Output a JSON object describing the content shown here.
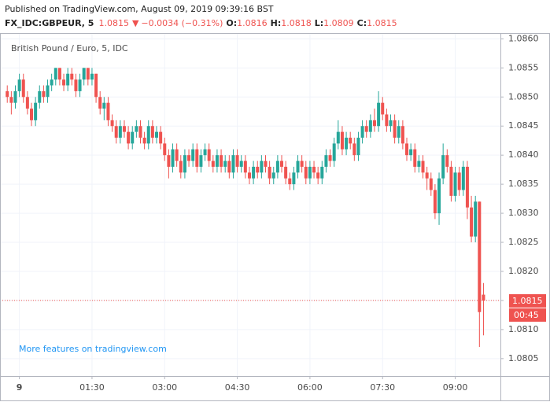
{
  "header": {
    "published": "Published on TradingView.com, August 09, 2019 09:39:16 BST",
    "symbol": "FX_IDC:GBPEUR, 5",
    "last": 1.0815,
    "arrow": "▼",
    "change": "−0.0034 (−0.31%)",
    "ohlc": [
      {
        "label": "O:",
        "value": 1.0816
      },
      {
        "label": "H:",
        "value": 1.0818
      },
      {
        "label": "L:",
        "value": 1.0809
      },
      {
        "label": "C:",
        "value": 1.0815
      }
    ]
  },
  "chart_data": {
    "type": "candlestick",
    "title": "British Pound / Euro, 5, IDC",
    "watermark": "More features on tradingview.com",
    "up_color": "#26a69a",
    "down_color": "#ef5350",
    "grid": true,
    "price_line": 1.0815,
    "countdown": "00:45",
    "xlim": [
      -24,
      596
    ],
    "xticks": [
      {
        "value": 0,
        "label": "9"
      },
      {
        "value": 90,
        "label": "01:30"
      },
      {
        "value": 180,
        "label": "03:00"
      },
      {
        "value": 270,
        "label": "04:30"
      },
      {
        "value": 360,
        "label": "06:00"
      },
      {
        "value": 450,
        "label": "07:30"
      },
      {
        "value": 540,
        "label": "09:00"
      }
    ],
    "ylim": [
      1.0802,
      1.0861
    ],
    "yticks": [
      1.0805,
      {
        "value": 1.081,
        "label": "1.0810"
      },
      1.0815,
      {
        "value": 1.082,
        "label": "1.0820"
      },
      1.0825,
      {
        "value": 1.083,
        "label": "1.0830"
      },
      1.0835,
      {
        "value": 1.084,
        "label": "1.0840"
      },
      1.0845,
      {
        "value": 1.085,
        "label": "1.0850"
      },
      1.0855,
      {
        "value": 1.086,
        "label": "1.0860"
      }
    ],
    "x": [
      -15,
      -10,
      -5,
      0,
      5,
      10,
      15,
      20,
      25,
      30,
      35,
      40,
      45,
      50,
      55,
      60,
      65,
      70,
      75,
      80,
      85,
      90,
      95,
      100,
      105,
      110,
      115,
      120,
      125,
      130,
      135,
      140,
      145,
      150,
      155,
      160,
      165,
      170,
      175,
      180,
      185,
      190,
      195,
      200,
      205,
      210,
      215,
      220,
      225,
      230,
      235,
      240,
      245,
      250,
      255,
      260,
      265,
      270,
      275,
      280,
      285,
      290,
      295,
      300,
      305,
      310,
      315,
      320,
      325,
      330,
      335,
      340,
      345,
      350,
      355,
      360,
      365,
      370,
      375,
      380,
      385,
      390,
      395,
      400,
      405,
      410,
      415,
      420,
      425,
      430,
      435,
      440,
      445,
      450,
      455,
      460,
      465,
      470,
      475,
      480,
      485,
      490,
      495,
      500,
      505,
      510,
      515,
      520,
      525,
      530,
      535,
      540,
      545,
      550,
      555,
      560,
      565,
      570,
      575
    ],
    "candles": [
      [
        1.0851,
        1.0852,
        1.0849,
        1.085
      ],
      [
        1.085,
        1.0851,
        1.0847,
        1.0849
      ],
      [
        1.0849,
        1.0852,
        1.0848,
        1.0851
      ],
      [
        1.0851,
        1.0854,
        1.085,
        1.0853
      ],
      [
        1.0853,
        1.0854,
        1.0849,
        1.085
      ],
      [
        1.085,
        1.0851,
        1.0847,
        1.0848
      ],
      [
        1.0848,
        1.0849,
        1.0845,
        1.0846
      ],
      [
        1.0846,
        1.085,
        1.0845,
        1.0849
      ],
      [
        1.0849,
        1.0852,
        1.0848,
        1.0851
      ],
      [
        1.0851,
        1.0852,
        1.0849,
        1.085
      ],
      [
        1.085,
        1.0853,
        1.0849,
        1.0852
      ],
      [
        1.0852,
        1.0854,
        1.0851,
        1.0853
      ],
      [
        1.0853,
        1.0855,
        1.0852,
        1.0855
      ],
      [
        1.0855,
        1.0855,
        1.0852,
        1.0853
      ],
      [
        1.0853,
        1.0854,
        1.0851,
        1.0852
      ],
      [
        1.0852,
        1.0855,
        1.0851,
        1.0854
      ],
      [
        1.0854,
        1.0855,
        1.0852,
        1.0853
      ],
      [
        1.0853,
        1.0854,
        1.085,
        1.0851
      ],
      [
        1.0851,
        1.0854,
        1.085,
        1.0853
      ],
      [
        1.0853,
        1.0855,
        1.0852,
        1.0855
      ],
      [
        1.0855,
        1.0855,
        1.0852,
        1.0853
      ],
      [
        1.0853,
        1.0855,
        1.0852,
        1.0854
      ],
      [
        1.0854,
        1.0854,
        1.0849,
        1.085
      ],
      [
        1.085,
        1.0851,
        1.0847,
        1.0848
      ],
      [
        1.0848,
        1.085,
        1.0846,
        1.0849
      ],
      [
        1.0849,
        1.085,
        1.0845,
        1.0846
      ],
      [
        1.0846,
        1.0847,
        1.0844,
        1.0845
      ],
      [
        1.0845,
        1.0846,
        1.0842,
        1.0843
      ],
      [
        1.0843,
        1.0846,
        1.0842,
        1.0845
      ],
      [
        1.0845,
        1.0846,
        1.0843,
        1.0844
      ],
      [
        1.0844,
        1.0845,
        1.0841,
        1.0842
      ],
      [
        1.0842,
        1.0845,
        1.0841,
        1.0844
      ],
      [
        1.0844,
        1.0846,
        1.0843,
        1.0845
      ],
      [
        1.0845,
        1.0846,
        1.0842,
        1.0843
      ],
      [
        1.0843,
        1.0844,
        1.0841,
        1.0842
      ],
      [
        1.0842,
        1.0846,
        1.0841,
        1.0845
      ],
      [
        1.0845,
        1.0846,
        1.0842,
        1.0843
      ],
      [
        1.0843,
        1.0845,
        1.0842,
        1.0844
      ],
      [
        1.0844,
        1.0845,
        1.0841,
        1.0842
      ],
      [
        1.0842,
        1.0843,
        1.0839,
        1.084
      ],
      [
        1.084,
        1.0841,
        1.0836,
        1.0838
      ],
      [
        1.0838,
        1.0842,
        1.0837,
        1.0841
      ],
      [
        1.0841,
        1.0842,
        1.0838,
        1.0839
      ],
      [
        1.0839,
        1.084,
        1.0836,
        1.0837
      ],
      [
        1.0837,
        1.0841,
        1.0836,
        1.084
      ],
      [
        1.084,
        1.0841,
        1.0838,
        1.0839
      ],
      [
        1.0839,
        1.0842,
        1.0838,
        1.0841
      ],
      [
        1.0841,
        1.0842,
        1.0837,
        1.0838
      ],
      [
        1.0838,
        1.0841,
        1.0837,
        1.084
      ],
      [
        1.084,
        1.0842,
        1.0839,
        1.0841
      ],
      [
        1.0841,
        1.0842,
        1.0838,
        1.0839
      ],
      [
        1.0839,
        1.084,
        1.0837,
        1.0838
      ],
      [
        1.0838,
        1.0841,
        1.0837,
        1.084
      ],
      [
        1.084,
        1.0841,
        1.0837,
        1.0838
      ],
      [
        1.0838,
        1.084,
        1.0837,
        1.0839
      ],
      [
        1.0839,
        1.084,
        1.0836,
        1.0837
      ],
      [
        1.0837,
        1.0841,
        1.0836,
        1.084
      ],
      [
        1.084,
        1.0841,
        1.0837,
        1.0838
      ],
      [
        1.0838,
        1.084,
        1.0837,
        1.0839
      ],
      [
        1.0839,
        1.084,
        1.0836,
        1.0837
      ],
      [
        1.0837,
        1.0838,
        1.0835,
        1.0836
      ],
      [
        1.0836,
        1.0839,
        1.0835,
        1.0838
      ],
      [
        1.0838,
        1.0839,
        1.0836,
        1.0837
      ],
      [
        1.0837,
        1.084,
        1.0836,
        1.0839
      ],
      [
        1.0839,
        1.084,
        1.0837,
        1.0838
      ],
      [
        1.0838,
        1.0839,
        1.0835,
        1.0836
      ],
      [
        1.0836,
        1.0838,
        1.0835,
        1.0837
      ],
      [
        1.0837,
        1.084,
        1.0836,
        1.0839
      ],
      [
        1.0839,
        1.084,
        1.0837,
        1.0838
      ],
      [
        1.0838,
        1.0839,
        1.0835,
        1.0836
      ],
      [
        1.0836,
        1.0837,
        1.0834,
        1.0835
      ],
      [
        1.0835,
        1.0838,
        1.0834,
        1.0837
      ],
      [
        1.0837,
        1.084,
        1.0836,
        1.0839
      ],
      [
        1.0839,
        1.084,
        1.0837,
        1.0838
      ],
      [
        1.0838,
        1.0839,
        1.0835,
        1.0836
      ],
      [
        1.0836,
        1.0839,
        1.0835,
        1.0838
      ],
      [
        1.0838,
        1.0839,
        1.0836,
        1.0837
      ],
      [
        1.0837,
        1.0838,
        1.0835,
        1.0836
      ],
      [
        1.0836,
        1.0839,
        1.0835,
        1.0838
      ],
      [
        1.0838,
        1.0841,
        1.0837,
        1.084
      ],
      [
        1.084,
        1.0841,
        1.0838,
        1.0839
      ],
      [
        1.0839,
        1.0843,
        1.0838,
        1.0842
      ],
      [
        1.0842,
        1.0846,
        1.0841,
        1.0844
      ],
      [
        1.0844,
        1.0845,
        1.084,
        1.0841
      ],
      [
        1.0841,
        1.0844,
        1.084,
        1.0843
      ],
      [
        1.0843,
        1.0844,
        1.0841,
        1.0842
      ],
      [
        1.0842,
        1.0843,
        1.0839,
        1.084
      ],
      [
        1.084,
        1.0844,
        1.0839,
        1.0843
      ],
      [
        1.0843,
        1.0846,
        1.0842,
        1.0845
      ],
      [
        1.0845,
        1.0846,
        1.0843,
        1.0844
      ],
      [
        1.0844,
        1.0847,
        1.0843,
        1.0846
      ],
      [
        1.0846,
        1.0848,
        1.0844,
        1.0845
      ],
      [
        1.0845,
        1.0851,
        1.0844,
        1.0849
      ],
      [
        1.0849,
        1.085,
        1.0846,
        1.0847
      ],
      [
        1.0847,
        1.0848,
        1.0844,
        1.0845
      ],
      [
        1.0845,
        1.0847,
        1.0844,
        1.0846
      ],
      [
        1.0846,
        1.0847,
        1.0842,
        1.0843
      ],
      [
        1.0843,
        1.0846,
        1.0842,
        1.0845
      ],
      [
        1.0845,
        1.0846,
        1.0841,
        1.0842
      ],
      [
        1.0842,
        1.0843,
        1.0839,
        1.084
      ],
      [
        1.084,
        1.0842,
        1.0839,
        1.0841
      ],
      [
        1.0841,
        1.0842,
        1.0837,
        1.0838
      ],
      [
        1.0838,
        1.084,
        1.0837,
        1.0839
      ],
      [
        1.0839,
        1.084,
        1.0836,
        1.0837
      ],
      [
        1.0837,
        1.0838,
        1.0834,
        1.0836
      ],
      [
        1.0836,
        1.0837,
        1.0833,
        1.0834
      ],
      [
        1.0834,
        1.0835,
        1.0829,
        1.083
      ],
      [
        1.083,
        1.0837,
        1.0828,
        1.0836
      ],
      [
        1.0836,
        1.0842,
        1.0835,
        1.084
      ],
      [
        1.084,
        1.0841,
        1.0837,
        1.0838
      ],
      [
        1.0838,
        1.0839,
        1.0832,
        1.0833
      ],
      [
        1.0833,
        1.0838,
        1.0832,
        1.0837
      ],
      [
        1.0837,
        1.0838,
        1.0833,
        1.0834
      ],
      [
        1.0834,
        1.0839,
        1.0833,
        1.0838
      ],
      [
        1.0838,
        1.0839,
        1.0829,
        1.0831
      ],
      [
        1.0831,
        1.0833,
        1.0825,
        1.0826
      ],
      [
        1.0826,
        1.0833,
        1.0825,
        1.0832
      ],
      [
        1.0832,
        1.0832,
        1.0807,
        1.0813
      ],
      [
        1.0816,
        1.0818,
        1.0809,
        1.0815
      ]
    ]
  }
}
